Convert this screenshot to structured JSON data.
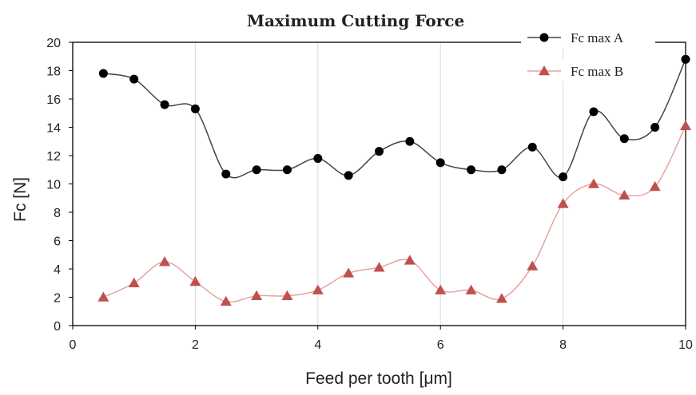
{
  "chart_data": {
    "type": "line",
    "title": "Maximum Cutting Force",
    "xlabel": "Feed per tooth [μm]",
    "ylabel": "Fc [N]",
    "xlim": [
      0,
      10
    ],
    "ylim": [
      0,
      20
    ],
    "xticks": [
      0,
      2,
      4,
      6,
      8,
      10
    ],
    "yticks": [
      0,
      2,
      4,
      6,
      8,
      10,
      12,
      14,
      16,
      18,
      20
    ],
    "grid": "vertical",
    "legend_position": "top-right",
    "x": [
      0.5,
      1,
      1.5,
      2,
      2.5,
      3,
      3.5,
      4,
      4.5,
      5,
      5.5,
      6,
      6.5,
      7,
      7.5,
      8,
      8.5,
      9,
      9.5,
      10
    ],
    "series": [
      {
        "name": "Fc max A",
        "marker": "circle",
        "color": "#000000",
        "line_color": "#444444",
        "values": [
          17.8,
          17.4,
          15.6,
          15.3,
          10.7,
          11.0,
          11.0,
          11.8,
          10.6,
          12.3,
          13.0,
          11.5,
          11.0,
          11.0,
          12.6,
          10.5,
          15.1,
          13.2,
          14.0,
          18.8
        ]
      },
      {
        "name": "Fc max B",
        "marker": "triangle",
        "color": "#c0504d",
        "line_color": "#e8a3a0",
        "values": [
          2.0,
          3.0,
          4.5,
          3.1,
          1.7,
          2.1,
          2.1,
          2.5,
          3.7,
          4.1,
          4.6,
          2.5,
          2.5,
          1.9,
          4.2,
          8.6,
          10.0,
          9.2,
          9.8,
          14.1
        ]
      }
    ]
  }
}
